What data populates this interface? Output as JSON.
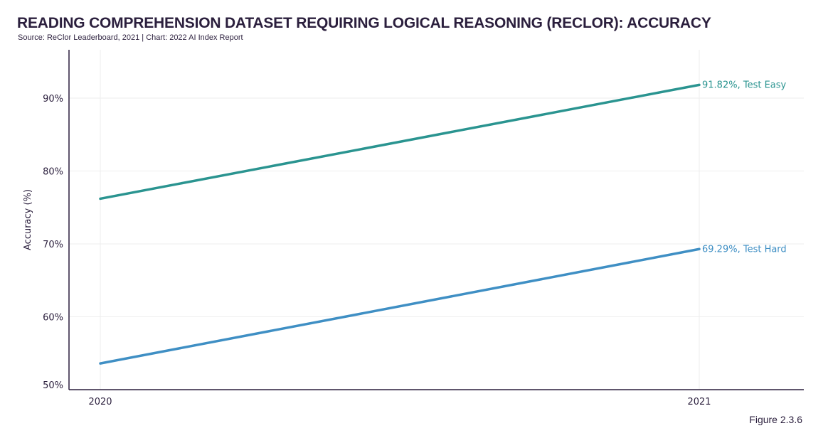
{
  "header": {
    "title": "READING COMPREHENSION DATASET REQUIRING LOGICAL REASONING (RECLOR): ACCURACY",
    "subtitle": "Source: ReClor Leaderboard, 2021 | Chart: 2022 AI Index Report"
  },
  "footer": {
    "figure_label": "Figure 2.3.6"
  },
  "chart_data": {
    "type": "line",
    "title": "READING COMPREHENSION DATASET REQUIRING LOGICAL REASONING (RECLOR): ACCURACY",
    "subtitle": "Source: ReClor Leaderboard, 2021 | Chart: 2022 AI Index Report",
    "xlabel": "",
    "ylabel": "Accuracy (%)",
    "x": [
      "2020",
      "2021"
    ],
    "x_tick_labels": [
      "2020",
      "2021"
    ],
    "ylim": [
      50,
      96
    ],
    "y_ticks": [
      50,
      60,
      70,
      80,
      90
    ],
    "y_tick_labels": [
      "50%",
      "60%",
      "70%",
      "80%",
      "90%"
    ],
    "grid": true,
    "series": [
      {
        "name": "Test Easy",
        "values": [
          76.2,
          91.82
        ],
        "color": "#2a9490",
        "end_label": "91.82%, Test Easy"
      },
      {
        "name": "Test Hard",
        "values": [
          53.6,
          69.29
        ],
        "color": "#3f8fc4",
        "end_label": "69.29%, Test Hard"
      }
    ],
    "colors": {
      "axis": "#2b1f3d",
      "grid": "#eeeeee"
    }
  }
}
